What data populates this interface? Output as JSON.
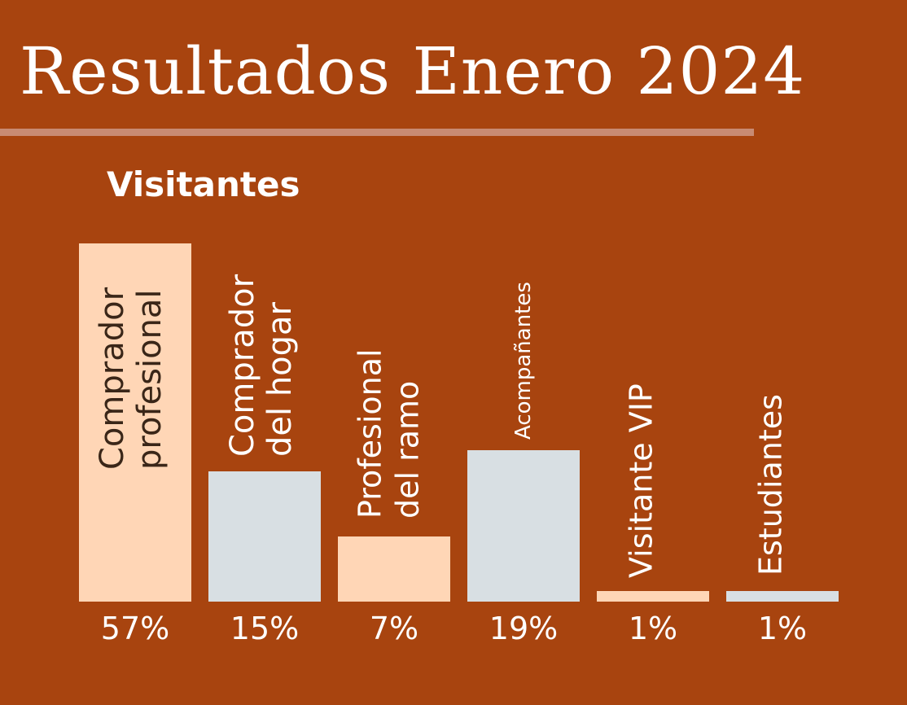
{
  "title": "Resultados Enero 2024",
  "subtitle": "Visitantes",
  "colors": {
    "background": "#A8440F",
    "divider": "#C88B73",
    "peach": "#FFD6B6",
    "gray": "#D8DFE3",
    "text_light": "#FFFFFF",
    "text_dark": "#3A2618"
  },
  "chart_data": {
    "type": "bar",
    "categories": [
      [
        "Comprador",
        "profesional"
      ],
      [
        "Comprador",
        "del hogar"
      ],
      [
        "Profesional",
        "del ramo"
      ],
      [
        "Acompañantes"
      ],
      [
        "Visitante VIP"
      ],
      [
        "Estudiantes"
      ]
    ],
    "values": [
      57,
      15,
      7,
      19,
      1,
      1
    ],
    "value_labels": [
      "57%",
      "15%",
      "7%",
      "19%",
      "1%",
      "1%"
    ],
    "bar_colors": [
      "#FFD6B6",
      "#D8DFE3",
      "#FFD6B6",
      "#D8DFE3",
      "#FFD6B6",
      "#D8DFE3"
    ],
    "xlabel": "",
    "ylabel": "",
    "grid": false,
    "legend": "none"
  }
}
